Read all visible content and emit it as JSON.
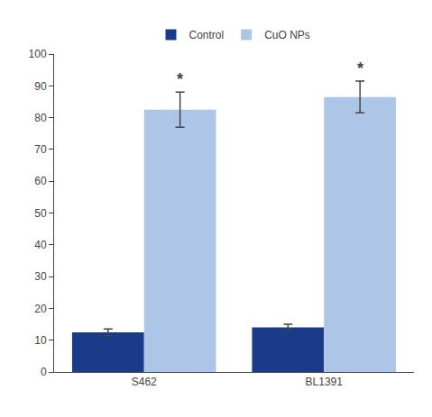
{
  "chart_data": {
    "type": "bar",
    "categories": [
      "S462",
      "BL1391"
    ],
    "series": [
      {
        "name": "Control",
        "color": "#1a3a8a",
        "values": [
          12.5,
          14.0
        ],
        "errors": [
          1.0,
          1.0
        ]
      },
      {
        "name": "CuO NPs",
        "color": "#adc6e8",
        "values": [
          82.5,
          86.5
        ],
        "errors": [
          5.5,
          5.0
        ]
      }
    ],
    "ylim": [
      0,
      100
    ],
    "yticks": [
      0,
      10,
      20,
      30,
      40,
      50,
      60,
      70,
      80,
      90,
      100
    ],
    "grid": false,
    "legend": "top",
    "annotations": [
      {
        "text": "*",
        "series": "CuO NPs",
        "category": "S462"
      },
      {
        "text": "*",
        "series": "CuO NPs",
        "category": "BL1391"
      }
    ]
  }
}
